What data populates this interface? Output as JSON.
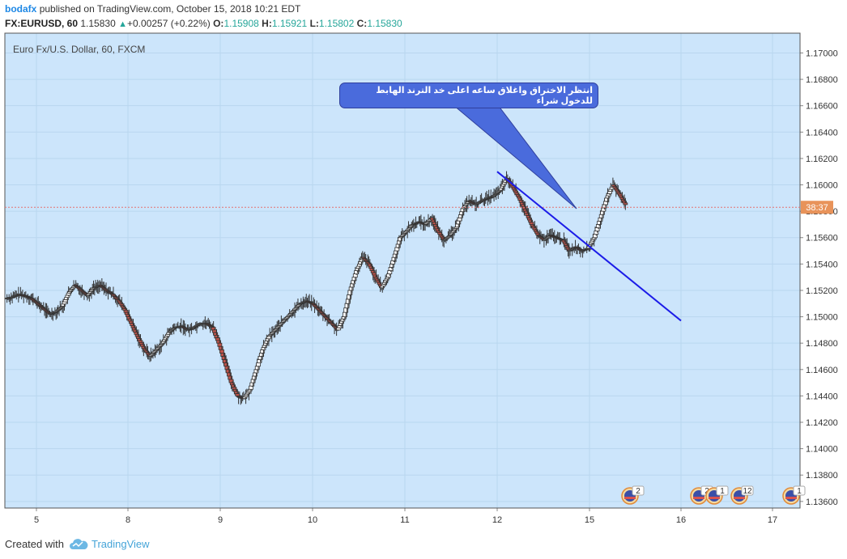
{
  "header": {
    "author": "bodafx",
    "published_text": "published on TradingView.com, October 15, 2018 10:21 EDT",
    "symbol": "FX:EURUSD, 60",
    "last": "1.15830",
    "change": "+0.00257 (+0.22%)",
    "open_label": "O:",
    "open": "1.15908",
    "high_label": "H:",
    "high": "1.15921",
    "low_label": "L:",
    "low": "1.15802",
    "close_label": "C:",
    "close": "1.15830"
  },
  "chart": {
    "legend": "Euro Fx/U.S. Dollar, 60, FXCM",
    "countdown": "38:37",
    "annotation": "انتظر الاختراق واغلاق ساعه اعلى خد الترند الهابط للدخول شراء",
    "colors": {
      "background": "#cce5fb",
      "bull": "#ffffff",
      "bear": "#c0544b",
      "trendline": "#1c1ce8",
      "price_line": "#e57373",
      "countdown_bg": "#e8935a"
    },
    "event_badges": [
      "2",
      "2",
      "1",
      "12",
      "1"
    ]
  },
  "chart_data": {
    "type": "candlestick",
    "symbol": "EURUSD",
    "timeframe": "60",
    "x_tick_labels": [
      "5",
      "8",
      "9",
      "10",
      "11",
      "12",
      "15",
      "16",
      "17"
    ],
    "y_tick_labels": [
      "1.17000",
      "1.16800",
      "1.16600",
      "1.16400",
      "1.16200",
      "1.16000",
      "1.15800",
      "1.15600",
      "1.15400",
      "1.15200",
      "1.15000",
      "1.14800",
      "1.14600",
      "1.14400",
      "1.14200",
      "1.14000",
      "1.13800",
      "1.13600"
    ],
    "ylim": [
      1.1355,
      1.1715
    ],
    "path_points": [
      [
        0,
        1.1514
      ],
      [
        6,
        1.1515
      ],
      [
        12,
        1.1517
      ],
      [
        18,
        1.1516
      ],
      [
        24,
        1.1514
      ],
      [
        30,
        1.151
      ],
      [
        36,
        1.1506
      ],
      [
        42,
        1.1502
      ],
      [
        48,
        1.1504
      ],
      [
        54,
        1.1508
      ],
      [
        60,
        1.1518
      ],
      [
        66,
        1.1524
      ],
      [
        72,
        1.152
      ],
      [
        78,
        1.1516
      ],
      [
        84,
        1.1522
      ],
      [
        90,
        1.1524
      ],
      [
        96,
        1.152
      ],
      [
        102,
        1.1517
      ],
      [
        108,
        1.1512
      ],
      [
        114,
        1.1505
      ],
      [
        120,
        1.1495
      ],
      [
        126,
        1.1485
      ],
      [
        132,
        1.1476
      ],
      [
        138,
        1.147
      ],
      [
        144,
        1.1475
      ],
      [
        150,
        1.148
      ],
      [
        156,
        1.1488
      ],
      [
        162,
        1.1492
      ],
      [
        168,
        1.1493
      ],
      [
        174,
        1.149
      ],
      [
        180,
        1.1492
      ],
      [
        186,
        1.1495
      ],
      [
        192,
        1.1495
      ],
      [
        198,
        1.1492
      ],
      [
        204,
        1.148
      ],
      [
        210,
        1.1465
      ],
      [
        216,
        1.145
      ],
      [
        222,
        1.144
      ],
      [
        228,
        1.1438
      ],
      [
        234,
        1.1445
      ],
      [
        240,
        1.146
      ],
      [
        246,
        1.1475
      ],
      [
        252,
        1.1485
      ],
      [
        258,
        1.149
      ],
      [
        264,
        1.1495
      ],
      [
        270,
        1.15
      ],
      [
        276,
        1.1505
      ],
      [
        282,
        1.151
      ],
      [
        288,
        1.1512
      ],
      [
        294,
        1.151
      ],
      [
        300,
        1.1505
      ],
      [
        306,
        1.15
      ],
      [
        312,
        1.1495
      ],
      [
        318,
        1.149
      ],
      [
        324,
        1.15
      ],
      [
        330,
        1.152
      ],
      [
        336,
        1.1535
      ],
      [
        342,
        1.1545
      ],
      [
        348,
        1.154
      ],
      [
        354,
        1.153
      ],
      [
        360,
        1.1522
      ],
      [
        366,
        1.153
      ],
      [
        372,
        1.1545
      ],
      [
        378,
        1.156
      ],
      [
        384,
        1.1565
      ],
      [
        390,
        1.157
      ],
      [
        396,
        1.1572
      ],
      [
        402,
        1.157
      ],
      [
        408,
        1.1575
      ],
      [
        414,
        1.1565
      ],
      [
        420,
        1.1558
      ],
      [
        426,
        1.1562
      ],
      [
        432,
        1.1568
      ],
      [
        438,
        1.1582
      ],
      [
        444,
        1.1588
      ],
      [
        450,
        1.1585
      ],
      [
        456,
        1.1588
      ],
      [
        462,
        1.159
      ],
      [
        468,
        1.1592
      ],
      [
        474,
        1.1596
      ],
      [
        480,
        1.1605
      ],
      [
        486,
        1.1598
      ],
      [
        492,
        1.159
      ],
      [
        498,
        1.158
      ],
      [
        504,
        1.157
      ],
      [
        510,
        1.1562
      ],
      [
        516,
        1.1558
      ],
      [
        522,
        1.1562
      ],
      [
        528,
        1.156
      ],
      [
        534,
        1.1558
      ],
      [
        540,
        1.155
      ],
      [
        546,
        1.1553
      ],
      [
        552,
        1.155
      ],
      [
        558,
        1.1552
      ],
      [
        564,
        1.156
      ],
      [
        570,
        1.1575
      ],
      [
        576,
        1.159
      ],
      [
        582,
        1.16
      ],
      [
        588,
        1.1593
      ],
      [
        594,
        1.1585
      ]
    ],
    "trendline": {
      "from": {
        "x": "12",
        "y": 1.161
      },
      "to": {
        "x": "16",
        "y": 1.1497
      }
    },
    "current_price": 1.1583
  }
}
